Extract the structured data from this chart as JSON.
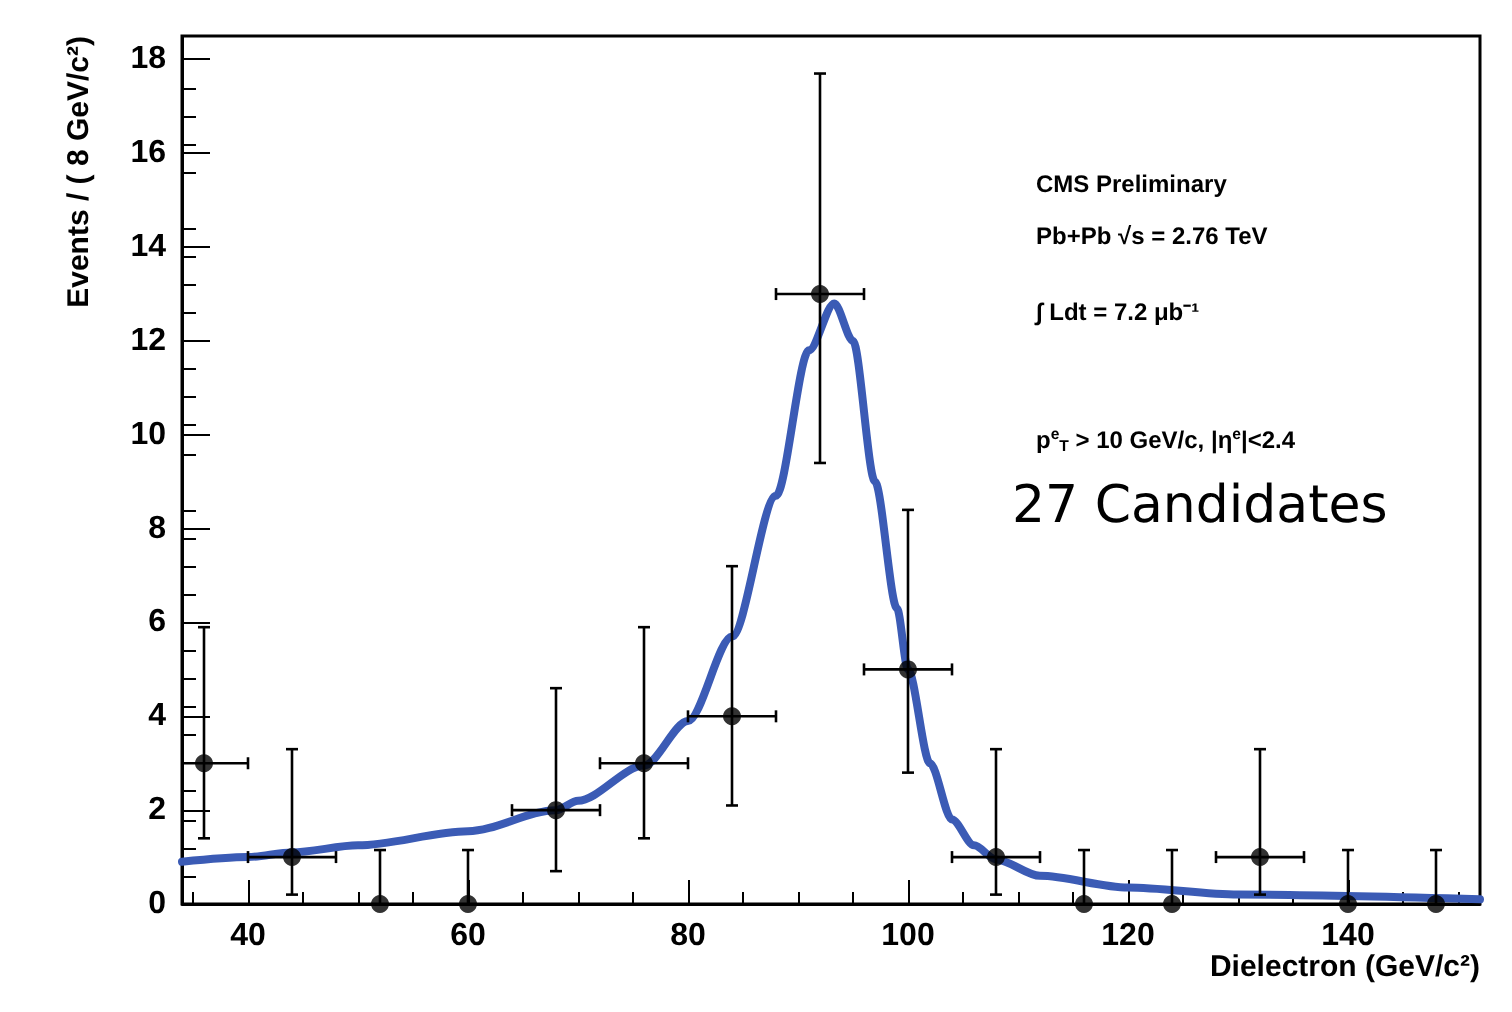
{
  "chart_data": {
    "type": "scatter",
    "xlabel": "Dielectron (GeV/c²)",
    "ylabel": "Events / ( 8 GeV/c²)",
    "xlim": [
      34,
      152
    ],
    "xticks": [
      40,
      60,
      80,
      100,
      120,
      140
    ],
    "ylim": [
      0,
      18.5
    ],
    "yticks": [
      0,
      2,
      4,
      6,
      8,
      10,
      12,
      14,
      16,
      18
    ],
    "grid": false,
    "annotations": [
      "CMS Preliminary",
      "Pb+Pb √s = 2.76 TeV",
      "∫ Ldt = 7.2 μb⁻¹",
      "p$^{e}$$_{T}$ > 10 GeV/c, |η$^{e}$|<2.4",
      "27 Candidates"
    ],
    "series": [
      {
        "color": "#000000",
        "marker": "circle",
        "x": [
          36,
          44,
          52,
          60,
          68,
          76,
          84,
          92,
          100,
          108,
          116,
          124,
          132,
          140,
          148
        ],
        "values": [
          3,
          1,
          0,
          0,
          2,
          3,
          4,
          13,
          5,
          1,
          0,
          0,
          1,
          0,
          0
        ],
        "errors": [
          [
            1.4,
            5.9
          ],
          [
            0.2,
            3.3
          ],
          [
            0,
            1.15
          ],
          [
            0,
            1.15
          ],
          [
            0.7,
            4.6
          ],
          [
            1.4,
            5.9
          ],
          [
            2.1,
            7.2
          ],
          [
            9.4,
            17.7
          ],
          [
            2.8,
            8.4
          ],
          [
            0.2,
            3.3
          ],
          [
            0,
            1.15
          ],
          [
            0,
            1.15
          ],
          [
            0.2,
            3.3
          ],
          [
            0,
            1.15
          ],
          [
            0,
            1.15
          ]
        ],
        "xerrors": [
          [
            34,
            40
          ],
          4,
          null,
          null,
          4,
          4,
          4,
          4,
          4,
          4,
          null,
          null,
          4,
          null,
          null
        ]
      },
      {
        "type": "line",
        "color": "#3b5bb5",
        "marker": "none",
        "line_style": "solid",
        "x": [
          34,
          40,
          44,
          50,
          60,
          68,
          70,
          76,
          80,
          84,
          88,
          91,
          93.3,
          95,
          97,
          99,
          100,
          102,
          104,
          106,
          108,
          112,
          120,
          130,
          152
        ],
        "values": [
          0.9,
          1.0,
          1.1,
          1.25,
          1.55,
          2.0,
          2.2,
          2.95,
          3.9,
          5.7,
          8.7,
          11.8,
          12.8,
          12.0,
          9.0,
          6.3,
          5.0,
          3.0,
          1.8,
          1.25,
          0.95,
          0.6,
          0.35,
          0.2,
          0.1
        ]
      }
    ]
  }
}
